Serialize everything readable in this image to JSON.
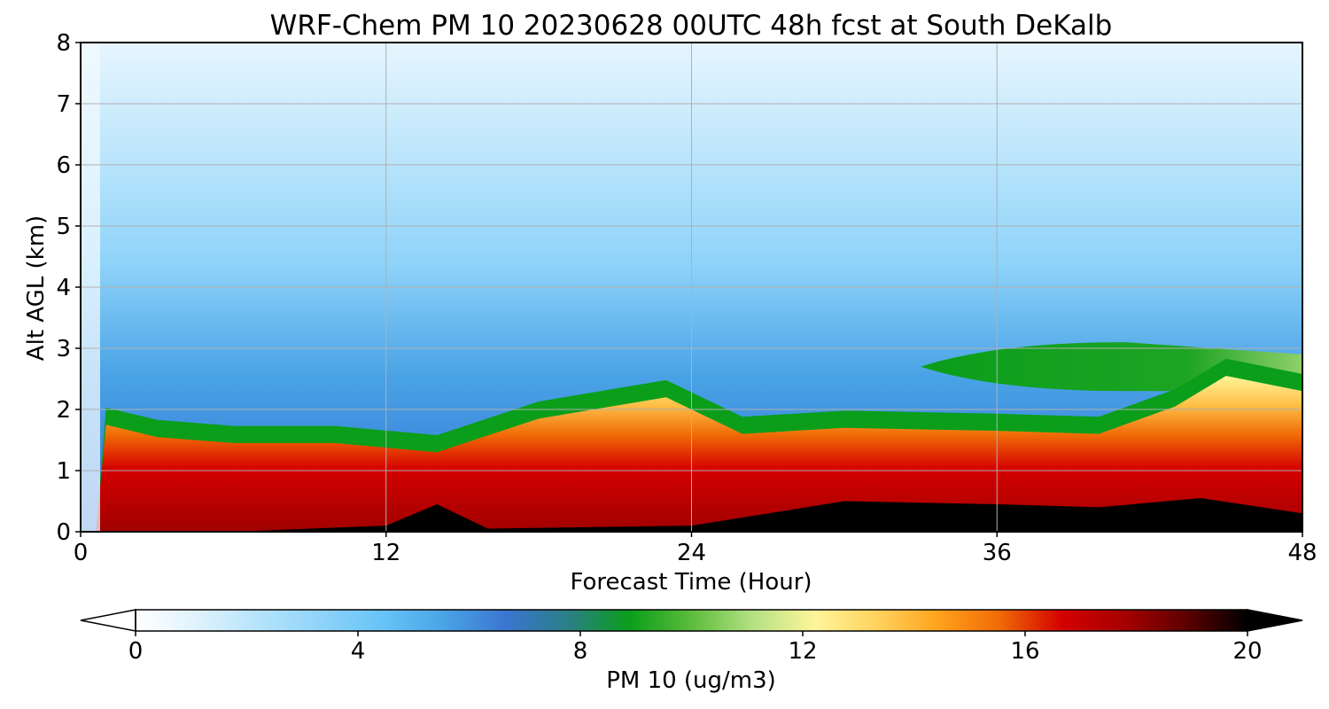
{
  "chart_data": {
    "type": "heatmap",
    "title": "WRF-Chem PM 10  20230628 00UTC 48h fcst at South DeKalb",
    "xlabel": "Forecast Time (Hour)",
    "ylabel": "Alt AGL (km)",
    "xlim": [
      0,
      48
    ],
    "ylim": [
      0,
      8
    ],
    "xticks": [
      0,
      12,
      24,
      36,
      48
    ],
    "yticks": [
      0,
      1,
      2,
      3,
      4,
      5,
      6,
      7,
      8
    ],
    "grid": true,
    "colorbar": {
      "label": "PM 10  (ug/m3)",
      "range": [
        0,
        20
      ],
      "ticks": [
        0,
        4,
        8,
        12,
        16,
        20
      ],
      "extend": "both",
      "colors": [
        "#ffffff",
        "#dff2fd",
        "#b5e3fb",
        "#8fd3f9",
        "#66c4f6",
        "#4aa3e6",
        "#3a75d0",
        "#2b7f86",
        "#0a9e1a",
        "#5cbc3c",
        "#b5e183",
        "#fff59a",
        "#ffd25e",
        "#ffa21c",
        "#f06a06",
        "#d40000",
        "#a60000",
        "#5e0000",
        "#000000"
      ]
    },
    "regions": [
      {
        "name": "surface-core",
        "max_value": 20,
        "layer_top_km_by_hour": [
          [
            0,
            0
          ],
          [
            6,
            0
          ],
          [
            12,
            0.1
          ],
          [
            14,
            0.45
          ],
          [
            16,
            0.05
          ],
          [
            24,
            0.1
          ],
          [
            30,
            0.5
          ],
          [
            36,
            0.45
          ],
          [
            40,
            0.4
          ],
          [
            44,
            0.55
          ],
          [
            48,
            0.3
          ]
        ]
      },
      {
        "name": "mixed-layer",
        "value_range": [
          10,
          16
        ],
        "layer_top_km_by_hour": [
          [
            0,
            0
          ],
          [
            0.6,
            0
          ],
          [
            1,
            1.75
          ],
          [
            3,
            1.55
          ],
          [
            6,
            1.45
          ],
          [
            10,
            1.45
          ],
          [
            14,
            1.3
          ],
          [
            18,
            1.85
          ],
          [
            23,
            2.2
          ],
          [
            26,
            1.6
          ],
          [
            30,
            1.7
          ],
          [
            36,
            1.65
          ],
          [
            40,
            1.6
          ],
          [
            43,
            2.05
          ],
          [
            45,
            2.55
          ],
          [
            48,
            2.3
          ]
        ]
      },
      {
        "name": "elevated-layer",
        "value_range": [
          7,
          9
        ],
        "base_km": 2.3,
        "top_km": 3.1,
        "hours": [
          33,
          48
        ]
      },
      {
        "name": "free-troposphere",
        "value_range": [
          1,
          5
        ],
        "note_height_km": [
          2,
          8
        ]
      }
    ]
  }
}
